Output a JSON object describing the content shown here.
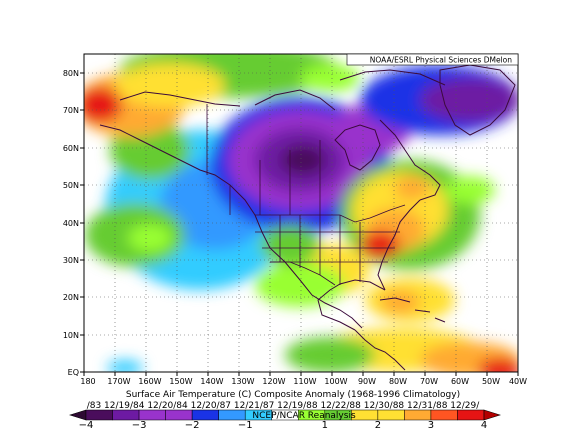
{
  "credit": "NOAA/ESRL Physical Sciences DMelon",
  "title": "Surface Air Temperature (C) Composite Anomaly (1968-1996 Climatology)",
  "dates_line": "/83 12/19/84 12/20/84 12/20/87 12/21/87 12/19/88 12/22/88 12/30/88 12/31/88 12/29/",
  "subtitle": "NCEP/NCAR Reanalysis",
  "colors": {
    "deep_purple": "#4a0d5c",
    "purple": "#6d1aa3",
    "violet": "#9933cc",
    "blue": "#1a33e6",
    "light_blue": "#3399ff",
    "cyan": "#33ccff",
    "white": "#ffffff",
    "light_green": "#99ff33",
    "green": "#66cc33",
    "yellow": "#ffe033",
    "orange": "#ffaa33",
    "red_orange": "#ff5522",
    "red": "#e61414"
  },
  "chart_data": {
    "type": "heatmap",
    "variable": "Surface Air Temperature (C) Composite Anomaly",
    "x_axis": {
      "labels": [
        "180",
        "170W",
        "160W",
        "150W",
        "140W",
        "130W",
        "120W",
        "110W",
        "100W",
        "90W",
        "80W",
        "70W",
        "60W",
        "50W",
        "40W"
      ],
      "lim": [
        -180,
        -40
      ]
    },
    "y_axis": {
      "labels": [
        "EQ",
        "10N",
        "20N",
        "30N",
        "40N",
        "50N",
        "60N",
        "70N",
        "80N"
      ],
      "lim": [
        0,
        85
      ]
    },
    "colorbar": {
      "tick_labels": [
        "-4",
        "-3",
        "-2",
        "-1",
        "1",
        "2",
        "3",
        "4"
      ],
      "levels": [
        -4,
        -3.5,
        -3,
        -2.5,
        -2,
        -1.5,
        -1,
        -0.5,
        0.5,
        1,
        1.5,
        2,
        2.5,
        3,
        3.5,
        4
      ]
    },
    "features": [
      {
        "name": "cold core west-central Canada",
        "lon": -112,
        "lat": 60,
        "anomaly": -4
      },
      {
        "name": "warm anomaly southeastern US",
        "lon": -82,
        "lat": 34,
        "anomaly": 4
      },
      {
        "name": "warm anomaly northwest Alaska / Chukchi",
        "lon": -170,
        "lat": 71,
        "anomaly": 3.5
      },
      {
        "name": "warm anomaly eastern Canada",
        "lon": -75,
        "lat": 48,
        "anomaly": 2.5
      }
    ],
    "grid": true
  }
}
